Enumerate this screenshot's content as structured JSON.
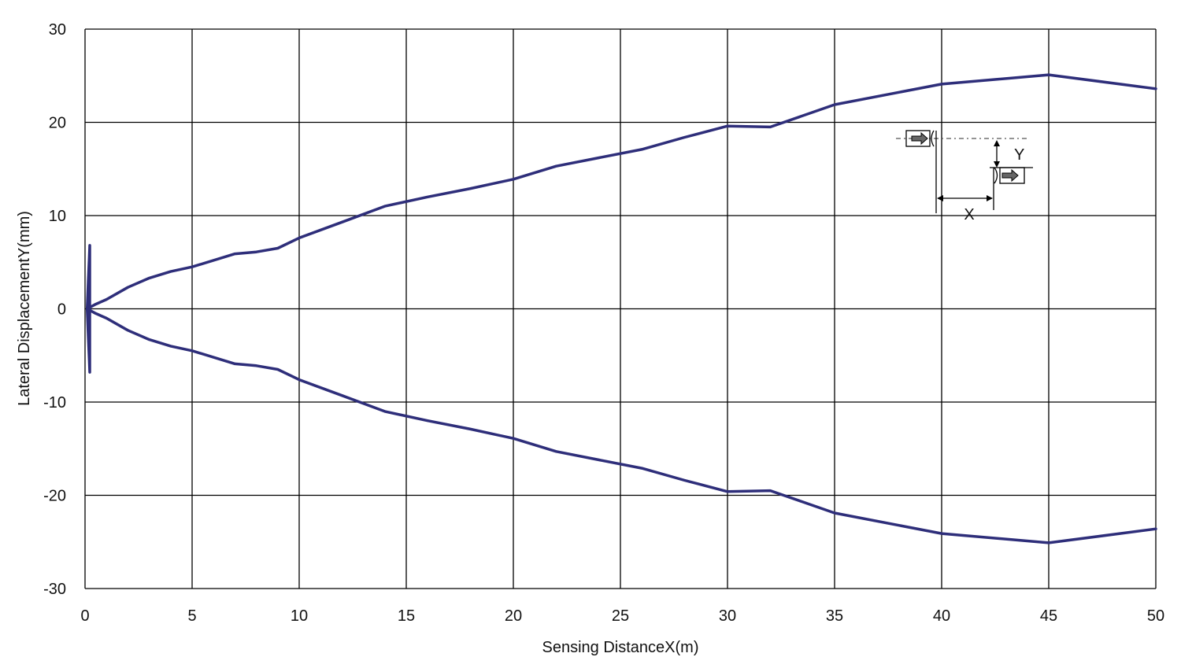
{
  "chart_data": {
    "type": "line",
    "title": "",
    "xlabel": "Sensing DistanceX(m)",
    "ylabel": "Lateral DisplacementY(mm)",
    "xlim": [
      0,
      50
    ],
    "ylim": [
      -30,
      30
    ],
    "xticks": [
      0,
      5,
      10,
      15,
      20,
      25,
      30,
      35,
      40,
      45,
      50
    ],
    "yticks": [
      -30,
      -20,
      -10,
      0,
      10,
      20,
      30
    ],
    "grid": true,
    "line_color": "#2e2e7a",
    "series": [
      {
        "x": [
          0.1,
          0.5,
          1,
          2,
          3,
          4,
          5,
          7,
          8,
          9,
          10,
          12,
          14,
          16,
          18,
          20,
          22,
          24,
          26,
          28,
          30,
          32,
          35,
          40,
          45,
          50
        ],
        "y": [
          0,
          0.5,
          1,
          2.3,
          3.3,
          4,
          4.5,
          5.9,
          6.1,
          6.5,
          7.6,
          9.3,
          11,
          12,
          12.9,
          13.9,
          15.3,
          16.2,
          17.1,
          18.4,
          19.6,
          19.5,
          21.9,
          24.1,
          25.1,
          23.6
        ]
      },
      {
        "x": [
          0.1,
          0.5,
          1,
          2,
          3,
          4,
          5,
          7,
          8,
          9,
          10,
          12,
          14,
          16,
          18,
          20,
          22,
          24,
          26,
          28,
          30,
          32,
          35,
          40,
          45,
          50
        ],
        "y": [
          0,
          -0.5,
          -1,
          -2.3,
          -3.3,
          -4,
          -4.5,
          -5.9,
          -6.1,
          -6.5,
          -7.6,
          -9.3,
          -11,
          -12,
          -12.9,
          -13.9,
          -15.3,
          -16.2,
          -17.1,
          -18.4,
          -19.6,
          -19.5,
          -21.9,
          -24.1,
          -25.1,
          -23.6
        ]
      },
      {
        "x": [
          0.1,
          0.15,
          0.2,
          0.22,
          0.22,
          0.2,
          0.15,
          0.1
        ],
        "y": [
          0,
          3,
          5.5,
          6.8,
          -6.8,
          -5.5,
          -3,
          0
        ]
      }
    ],
    "inset_labels": {
      "x": "X",
      "y": "Y"
    }
  }
}
